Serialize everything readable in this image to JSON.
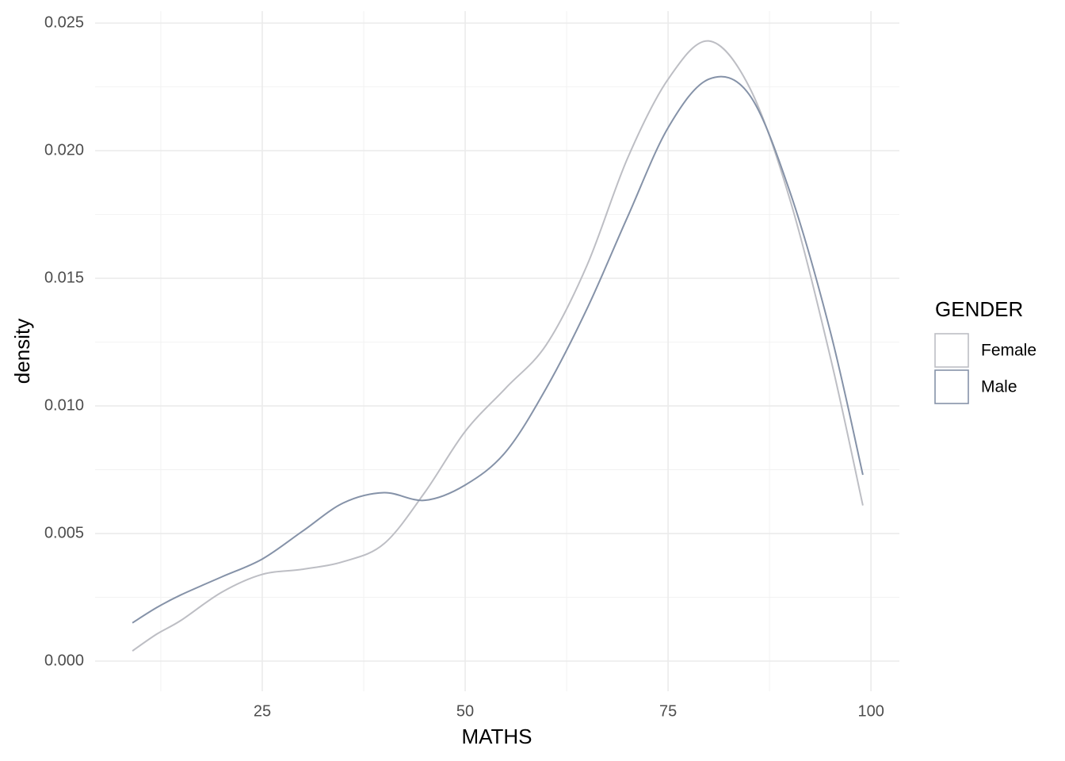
{
  "chart_data": {
    "type": "line",
    "x_label": "MATHS",
    "y_label": "density",
    "legend_title": "GENDER",
    "legend": "right",
    "grid": true,
    "x": [
      9,
      12,
      15,
      20,
      25,
      30,
      35,
      40,
      45,
      50,
      55,
      60,
      65,
      70,
      75,
      80,
      85,
      90,
      95,
      99
    ],
    "series": [
      {
        "name": "Female",
        "color": "#bdbec4",
        "values": [
          0.0004,
          0.00106,
          0.0016,
          0.0027,
          0.0034,
          0.0036,
          0.0039,
          0.0046,
          0.0066,
          0.009,
          0.0107,
          0.0124,
          0.0155,
          0.0197,
          0.0228,
          0.0243,
          0.0225,
          0.0181,
          0.0119,
          0.0061
        ]
      },
      {
        "name": "Male",
        "color": "#8592a8",
        "values": [
          0.0015,
          0.0021,
          0.0026,
          0.0033,
          0.004,
          0.0051,
          0.0062,
          0.0066,
          0.0063,
          0.0069,
          0.0082,
          0.0107,
          0.0138,
          0.0174,
          0.0209,
          0.0228,
          0.0222,
          0.0184,
          0.0129,
          0.0073
        ]
      }
    ],
    "xlim": [
      4.4,
      103.5
    ],
    "ylim": [
      -0.00118,
      0.02547
    ],
    "xticks": [
      25,
      50,
      75,
      100
    ],
    "yticks": [
      {
        "value": 0,
        "label": "0.000"
      },
      {
        "value": 0.005,
        "label": "0.005"
      },
      {
        "value": 0.01,
        "label": "0.010"
      },
      {
        "value": 0.015,
        "label": "0.015"
      },
      {
        "value": 0.02,
        "label": "0.020"
      },
      {
        "value": 0.025,
        "label": "0.025"
      }
    ]
  }
}
